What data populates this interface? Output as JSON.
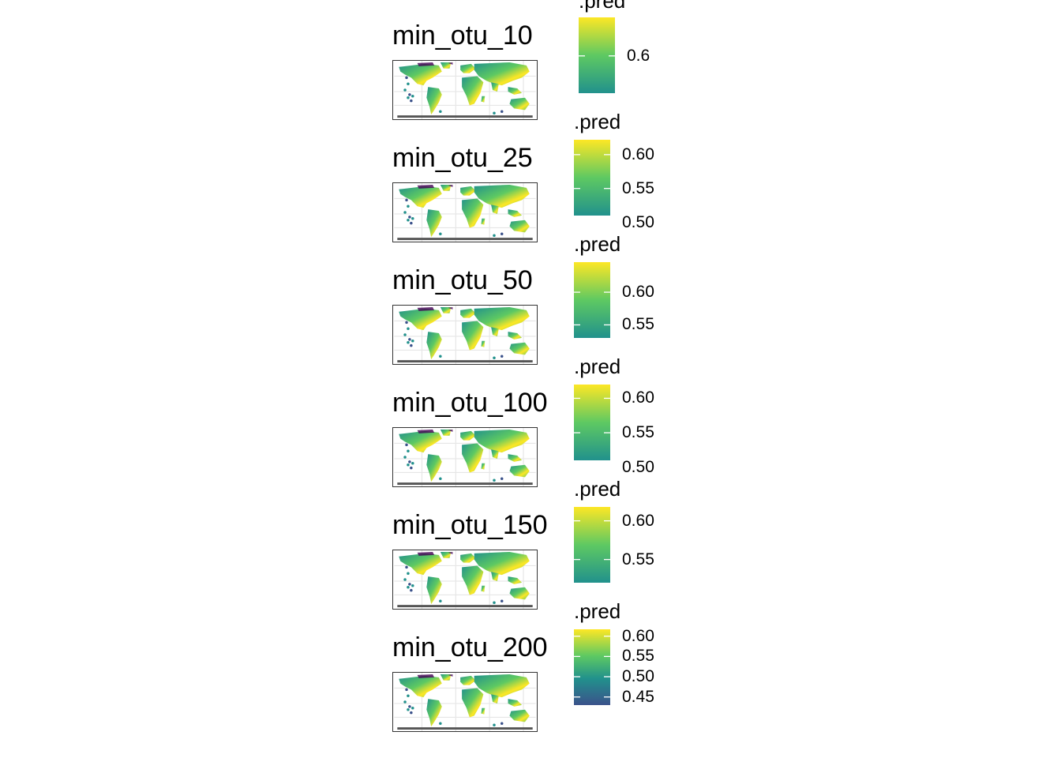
{
  "colors": {
    "viridis": [
      "#440154",
      "#3b528b",
      "#21918c",
      "#5ec962",
      "#fde725"
    ],
    "land": "#3aa565",
    "grid": "#e6e6e6",
    "border": "#333333",
    "antarctica": "#555555"
  },
  "chart_data": [
    {
      "type": "map",
      "title": "min_otu_10",
      "legend": {
        "title": ".pred",
        "ticks": [
          "0.6"
        ],
        "range": [
          0.57,
          0.63
        ],
        "visible_max": 0.631
      },
      "fill_scale": "viridis"
    },
    {
      "type": "map",
      "title": "min_otu_25",
      "legend": {
        "title": ".pred",
        "ticks": [
          "0.60",
          "0.55",
          "0.50"
        ],
        "range": [
          0.51,
          0.62
        ],
        "visible_max": 0.622
      },
      "fill_scale": "viridis"
    },
    {
      "type": "map",
      "title": "min_otu_50",
      "legend": {
        "title": ".pred",
        "ticks": [
          "0.60",
          "0.55"
        ],
        "range": [
          0.53,
          0.64
        ],
        "visible_max": 0.646
      },
      "fill_scale": "viridis"
    },
    {
      "type": "map",
      "title": "min_otu_100",
      "legend": {
        "title": ".pred",
        "ticks": [
          "0.60",
          "0.55",
          "0.50"
        ],
        "range": [
          0.51,
          0.62
        ],
        "visible_max": 0.62
      },
      "fill_scale": "viridis"
    },
    {
      "type": "map",
      "title": "min_otu_150",
      "legend": {
        "title": ".pred",
        "ticks": [
          "0.60",
          "0.55"
        ],
        "range": [
          0.52,
          0.61
        ],
        "visible_max": 0.618
      },
      "fill_scale": "viridis"
    },
    {
      "type": "map",
      "title": "min_otu_200",
      "legend": {
        "title": ".pred",
        "ticks": [
          "0.60",
          "0.55",
          "0.50",
          "0.45"
        ],
        "range": [
          0.43,
          0.62
        ],
        "visible_max": 0.617
      },
      "fill_scale": "viridis"
    }
  ]
}
